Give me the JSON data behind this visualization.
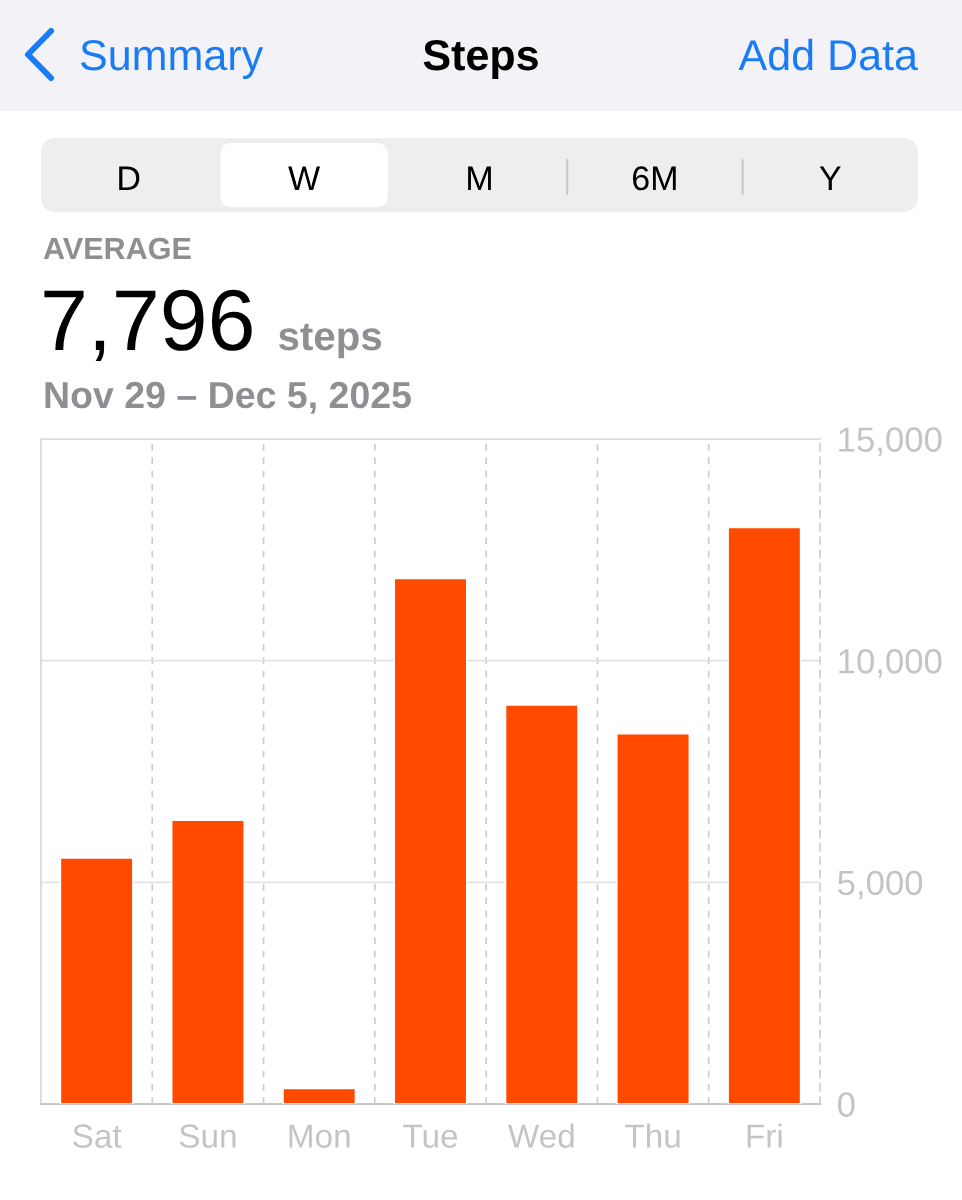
{
  "chart_data": {
    "type": "bar",
    "title": "Steps",
    "subtitle": "Nov 29 – Dec 5, 2025",
    "annotations": [
      "Summary",
      "Add Data",
      "D",
      "W",
      "M",
      "6M",
      "Y",
      "AVERAGE",
      "7,796",
      "steps"
    ],
    "categories": [
      "Sat",
      "Sun",
      "Mon",
      "Tue",
      "Wed",
      "Thu",
      "Fri"
    ],
    "values": [
      5550,
      6400,
      350,
      11850,
      9000,
      8350,
      13000
    ],
    "color": "#ff4a00",
    "ylim": [
      0,
      15000
    ],
    "yticks": [
      0,
      {
        "value": 5000,
        "label": "5,000"
      },
      {
        "value": 10000,
        "label": "10,000"
      },
      {
        "value": 15000,
        "label": "15,000"
      }
    ],
    "grid": true
  }
}
